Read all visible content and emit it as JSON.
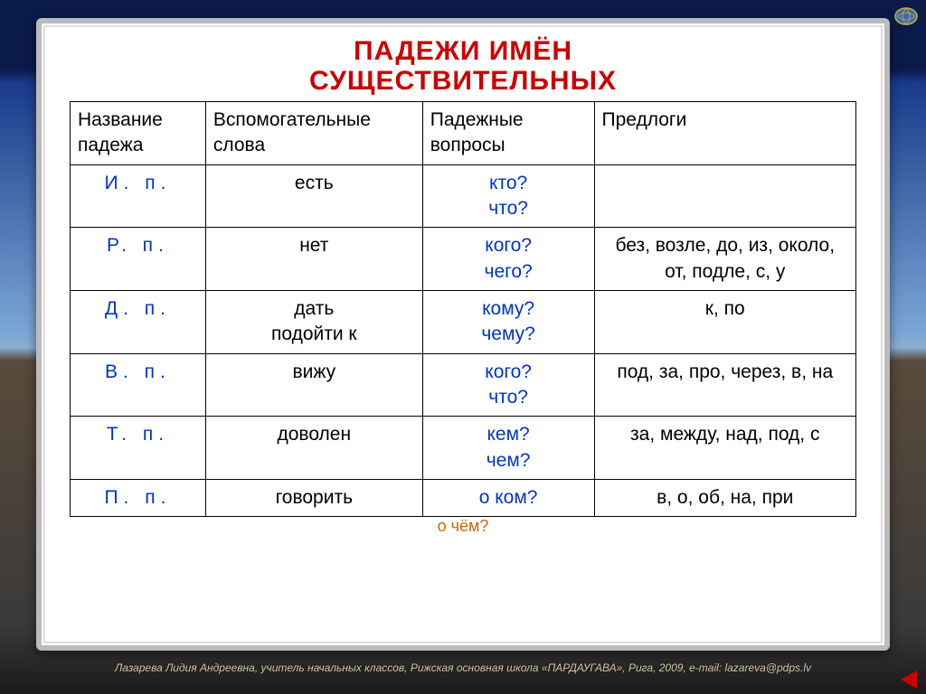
{
  "title_line1": "ПАДЕЖИ ИМЁН",
  "title_line2": "СУЩЕСТВИТЕЛЬНЫХ",
  "headers": {
    "case": "Название падежа",
    "helper": "Вспомогательные слова",
    "question": "Падежные вопросы",
    "prep": "Предлоги"
  },
  "rows": [
    {
      "case": "И.  п.",
      "helper": "есть",
      "question": "кто?\nчто?",
      "prep": ""
    },
    {
      "case": "Р.  п.",
      "helper": "нет",
      "question": "кого?\nчего?",
      "prep": "без, возле, до, из, около, от, подле, с, у"
    },
    {
      "case": "Д.  п.",
      "helper": "дать\nподойти к",
      "question": "кому?\nчему?",
      "prep": "к, по"
    },
    {
      "case": "В.  п.",
      "helper": "вижу",
      "question": "кого?\nчто?",
      "prep": "под, за, про, через, в, на"
    },
    {
      "case": "Т.  п.",
      "helper": "доволен",
      "question": "кем?\nчем?",
      "prep": "за, между, над, под, с"
    },
    {
      "case": "П.  п.",
      "helper": "говорить",
      "question": "о ком?",
      "prep": "в, о, об, на, при"
    }
  ],
  "ochem": "о чём?",
  "footer": "Лазарева Лидия Андреевна, учитель начальных классов, Рижская основная школа «ПАРДАУГАВА», Рига, 2009, e-mail: lazareva@pdps.lv",
  "colors": {
    "title": "#cc0000",
    "link": "#0033cc",
    "text": "#000000"
  },
  "col_widths": [
    "150px",
    "240px",
    "190px",
    "290px"
  ]
}
